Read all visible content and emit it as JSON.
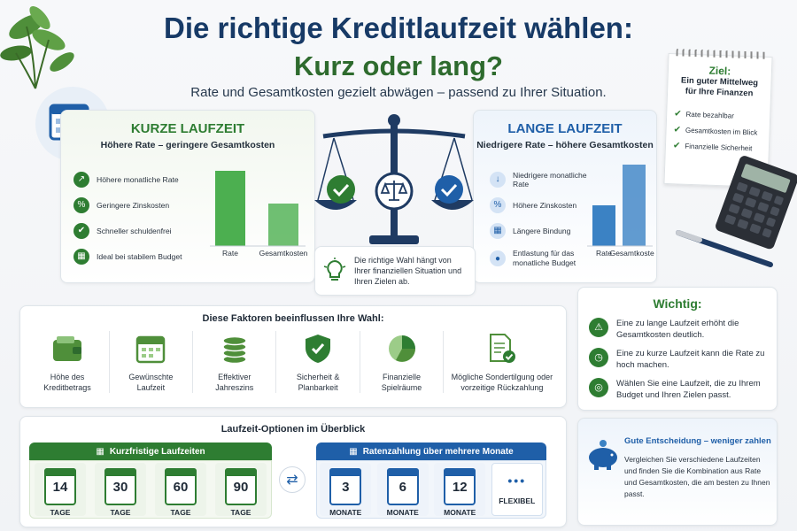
{
  "header": {
    "title_line1": "Die richtige Kreditlaufzeit wählen:",
    "title_line2": "Kurz oder lang?",
    "subtitle": "Rate und Gesamtkosten gezielt abwägen – passend zu Ihrer Situation."
  },
  "short_term": {
    "title": "KURZE LAUFZEIT",
    "subtitle": "Höhere Rate – geringere Gesamtkosten",
    "items": [
      {
        "icon": "trend-up-icon",
        "label": "Höhere monatliche Rate"
      },
      {
        "icon": "percent-icon",
        "label": "Geringere Zinskosten"
      },
      {
        "icon": "check-icon",
        "label": "Schneller schuldenfrei"
      },
      {
        "icon": "calculator-icon",
        "label": "Ideal bei stabilem Budget"
      }
    ],
    "bars": [
      {
        "label": "Rate",
        "value": 0.85
      },
      {
        "label": "Gesamtkosten",
        "value": 0.48
      }
    ],
    "color": "#4caf50"
  },
  "long_term": {
    "title": "LANGE LAUFZEIT",
    "subtitle": "Niedrigere Rate – höhere Gesamtkosten",
    "items": [
      {
        "icon": "arrow-down-icon",
        "label": "Niedrigere monatliche Rate"
      },
      {
        "icon": "percent-icon",
        "label": "Höhere Zinskosten"
      },
      {
        "icon": "calendar-icon",
        "label": "Längere Bindung"
      },
      {
        "icon": "user-icon",
        "label": "Entlastung für das monatliche Budget"
      }
    ],
    "bars": [
      {
        "label": "Rate",
        "value": 0.46
      },
      {
        "label": "Gesamtkosten",
        "value": 0.92
      }
    ],
    "color": "#3b82c4"
  },
  "scale_tip": "Die richtige Wahl hängt von Ihrer finanziellen Situation und Ihren Zielen ab.",
  "goal_note": {
    "title": "Ziel:",
    "text": "Ein guter Mittelweg für Ihre Finanzen",
    "items": [
      "Rate bezahlbar",
      "Gesamtkosten im Blick",
      "Finanzielle Sicherheit"
    ]
  },
  "factors": {
    "title": "Diese Faktoren beeinflussen Ihre Wahl:",
    "items": [
      {
        "icon": "wallet-icon",
        "label": "Höhe des Kreditbetrags"
      },
      {
        "icon": "calendar-icon",
        "label": "Gewünschte Laufzeit"
      },
      {
        "icon": "coins-icon",
        "label": "Effektiver Jahreszins"
      },
      {
        "icon": "shield-icon",
        "label": "Sicherheit & Planbarkeit"
      },
      {
        "icon": "pie-chart-icon",
        "label": "Finanzielle Spielräume"
      },
      {
        "icon": "document-icon",
        "label": "Mögliche Sondertilgung oder vorzeitige Rückzahlung"
      }
    ]
  },
  "important": {
    "title": "Wichtig:",
    "items": [
      {
        "icon": "warning-icon",
        "label": "Eine zu lange Laufzeit erhöht die Gesamtkosten deutlich."
      },
      {
        "icon": "clock-icon",
        "label": "Eine zu kurze Laufzeit kann die Rate zu hoch machen."
      },
      {
        "icon": "target-icon",
        "label": "Wählen Sie eine Laufzeit, die zu Ihrem Budget und Ihren Zielen passt."
      }
    ]
  },
  "options": {
    "title": "Laufzeit-Optionen im Überblick",
    "short_header": "Kurzfristige Laufzeiten",
    "short_items": [
      {
        "num": "14",
        "unit": "TAGE"
      },
      {
        "num": "30",
        "unit": "TAGE"
      },
      {
        "num": "60",
        "unit": "TAGE"
      },
      {
        "num": "90",
        "unit": "TAGE"
      }
    ],
    "long_header": "Ratenzahlung über mehrere Monate",
    "long_items": [
      {
        "num": "3",
        "unit": "MONATE"
      },
      {
        "num": "6",
        "unit": "MONATE"
      },
      {
        "num": "12",
        "unit": "MONATE"
      },
      {
        "num": "•••",
        "unit": "FLEXIBEL"
      }
    ]
  },
  "decision": {
    "title": "Gute Entscheidung – weniger zahlen",
    "text": "Vergleichen Sie verschiedene Laufzeiten und finden Sie die Kombination aus Rate und Gesamtkosten, die am besten zu Ihnen passt."
  }
}
